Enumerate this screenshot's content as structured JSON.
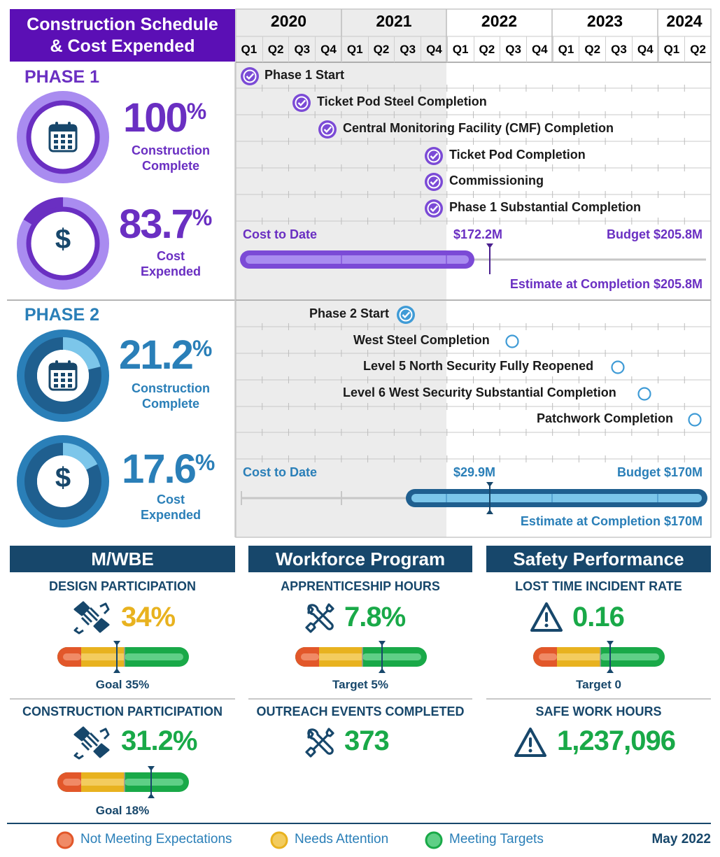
{
  "header": {
    "title_line1": "Construction Schedule",
    "title_line2": "& Cost Expended"
  },
  "timeline": {
    "years": [
      "2020",
      "2021",
      "2022",
      "2023",
      "2024"
    ],
    "quarters": [
      "Q1",
      "Q2",
      "Q3",
      "Q4",
      "Q1",
      "Q2",
      "Q3",
      "Q4",
      "Q1",
      "Q2",
      "Q3",
      "Q4",
      "Q1",
      "Q2",
      "Q3",
      "Q4",
      "Q1",
      "Q2"
    ]
  },
  "phase1": {
    "label": "PHASE 1",
    "construction_pct": "100%",
    "construction_pct_num": "100",
    "construction_label_1": "Construction",
    "construction_label_2": "Complete",
    "cost_pct_num": "83.7",
    "cost_label_1": "Cost",
    "cost_label_2": "Expended",
    "construction_fraction": 1.0,
    "cost_fraction": 0.837,
    "milestones": [
      {
        "label": "Phase 1 Start",
        "complete": true
      },
      {
        "label": "Ticket Pod Steel Completion",
        "complete": true
      },
      {
        "label": "Central Monitoring Facility (CMF) Completion",
        "complete": true
      },
      {
        "label": "Ticket Pod Completion",
        "complete": true
      },
      {
        "label": "Commissioning",
        "complete": true
      },
      {
        "label": "Phase 1 Substantial Completion",
        "complete": true
      }
    ],
    "cost_to_date_label": "Cost to Date",
    "cost_to_date_value": "$172.2M",
    "budget": "Budget $205.8M",
    "estimate": "Estimate at Completion $205.8M"
  },
  "phase2": {
    "label": "PHASE 2",
    "construction_pct_num": "21.2",
    "construction_label_1": "Construction",
    "construction_label_2": "Complete",
    "cost_pct_num": "17.6",
    "cost_label_1": "Cost",
    "cost_label_2": "Expended",
    "construction_fraction": 0.212,
    "cost_fraction": 0.176,
    "milestones": [
      {
        "label": "Phase 2 Start",
        "complete": true
      },
      {
        "label": "West Steel Completion",
        "complete": false
      },
      {
        "label": "Level 5 North Security Fully Reopened",
        "complete": false
      },
      {
        "label": "Level 6 West Security Substantial Completion",
        "complete": false
      },
      {
        "label": "Patchwork Completion",
        "complete": false
      }
    ],
    "cost_to_date_label": "Cost to Date",
    "cost_to_date_value": "$29.9M",
    "budget": "Budget $170M",
    "estimate": "Estimate at Completion $170M"
  },
  "percent_sign": "%",
  "sections": {
    "mwbe": {
      "title": "M/WBE",
      "m1": {
        "title": "DESIGN PARTICIPATION",
        "value": "34%",
        "goal": "Goal 35%",
        "icon": "handshake-icon",
        "status": "needs-attention"
      },
      "m2": {
        "title": "CONSTRUCTION PARTICIPATION",
        "value": "31.2%",
        "goal": "Goal 18%",
        "icon": "handshake-icon",
        "status": "meeting-targets"
      }
    },
    "workforce": {
      "title": "Workforce Program",
      "m1": {
        "title": "APPRENTICESHIP HOURS",
        "value": "7.8%",
        "goal": "Target 5%",
        "icon": "tools-icon",
        "status": "meeting-targets"
      },
      "m2": {
        "title": "OUTREACH EVENTS COMPLETED",
        "value": "373",
        "icon": "tools-icon",
        "status": "meeting-targets"
      }
    },
    "safety": {
      "title": "Safety Performance",
      "m1": {
        "title": "LOST TIME INCIDENT RATE",
        "value": "0.16",
        "goal": "Target 0",
        "icon": "warning-icon",
        "status": "meeting-targets"
      },
      "m2": {
        "title": "SAFE WORK HOURS",
        "value": "1,237,096",
        "icon": "warning-icon",
        "status": "meeting-targets"
      }
    }
  },
  "legend": {
    "not_meeting": "Not Meeting Expectations",
    "needs_attention": "Needs Attention",
    "meeting": "Meeting Targets",
    "date": "May 2022"
  },
  "colors": {
    "purple": "#6a2fc2",
    "purple_light": "#a98cf0",
    "blue": "#2a7fb8",
    "blue_dark": "#1f5f8f",
    "blue_light": "#7cc6ea",
    "navy": "#17476b",
    "red": "#e2572a",
    "yellow": "#e8b21f",
    "green": "#19a948"
  }
}
